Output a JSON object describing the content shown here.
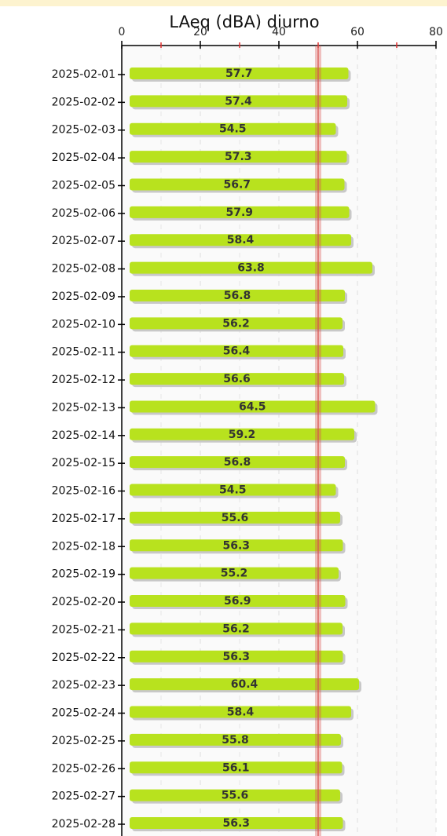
{
  "chart_data": {
    "type": "bar",
    "orientation": "horizontal",
    "title": "LAeq (dBA) diurno",
    "categories": [
      "2025-02-01",
      "2025-02-02",
      "2025-02-03",
      "2025-02-04",
      "2025-02-05",
      "2025-02-06",
      "2025-02-07",
      "2025-02-08",
      "2025-02-09",
      "2025-02-10",
      "2025-02-11",
      "2025-02-12",
      "2025-02-13",
      "2025-02-14",
      "2025-02-15",
      "2025-02-16",
      "2025-02-17",
      "2025-02-18",
      "2025-02-19",
      "2025-02-20",
      "2025-02-21",
      "2025-02-22",
      "2025-02-23",
      "2025-02-24",
      "2025-02-25",
      "2025-02-26",
      "2025-02-27",
      "2025-02-28"
    ],
    "values": [
      57.7,
      57.4,
      54.5,
      57.3,
      56.7,
      57.9,
      58.4,
      63.8,
      56.8,
      56.2,
      56.4,
      56.6,
      64.5,
      59.2,
      56.8,
      54.5,
      55.6,
      56.3,
      55.2,
      56.9,
      56.2,
      56.3,
      60.4,
      58.4,
      55.8,
      56.1,
      55.6,
      56.3
    ],
    "color": "#b8e21e",
    "xlim": [
      0,
      80
    ],
    "xticks": [
      0,
      20,
      40,
      60,
      80
    ],
    "minor_xticks": [
      10,
      30,
      50,
      70
    ],
    "reference_line": 50,
    "reference_color": "#d9534f",
    "grid": true
  }
}
